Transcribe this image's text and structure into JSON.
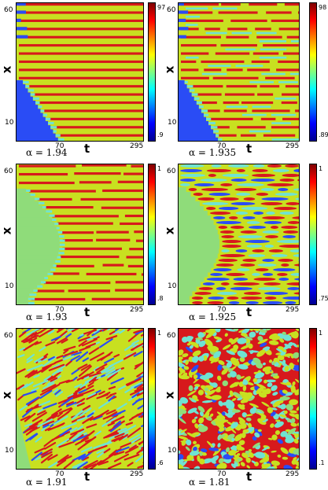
{
  "chart_data": [
    {
      "type": "heatmap",
      "xlabel": "t",
      "ylabel": "x",
      "x_ticks": [
        "70",
        "295"
      ],
      "y_ticks": [
        "60",
        "10"
      ],
      "colorbar_ticks": [
        "97",
        ".9"
      ],
      "caption": "α = 1.94",
      "pattern": "stripes"
    },
    {
      "type": "heatmap",
      "xlabel": "t",
      "ylabel": "x",
      "x_ticks": [
        "70",
        "295"
      ],
      "y_ticks": [
        "60",
        "10"
      ],
      "colorbar_ticks": [
        "98",
        ".89"
      ],
      "caption": "α = 1.935",
      "pattern": "stripes-broken"
    },
    {
      "type": "heatmap",
      "xlabel": "t",
      "ylabel": "x",
      "x_ticks": [
        "70",
        "295"
      ],
      "y_ticks": [
        "60",
        "10"
      ],
      "colorbar_ticks": [
        "1",
        ".8"
      ],
      "caption": "α = 1.93",
      "pattern": "stripes-wavy"
    },
    {
      "type": "heatmap",
      "xlabel": "t",
      "ylabel": "x",
      "x_ticks": [
        "70",
        "295"
      ],
      "y_ticks": [
        "60",
        "10"
      ],
      "colorbar_ticks": [
        "1",
        ".75"
      ],
      "caption": "α = 1.925",
      "pattern": "dashes"
    },
    {
      "type": "heatmap",
      "xlabel": "t",
      "ylabel": "x",
      "x_ticks": [
        "70",
        "295"
      ],
      "y_ticks": [
        "60",
        "10"
      ],
      "colorbar_ticks": [
        "1",
        ".6"
      ],
      "caption": "α = 1.91",
      "pattern": "chaotic-diagonal"
    },
    {
      "type": "heatmap",
      "xlabel": "t",
      "ylabel": "x",
      "x_ticks": [
        "70",
        "295"
      ],
      "y_ticks": [
        "60",
        "10"
      ],
      "colorbar_ticks": [
        "1",
        ".1"
      ],
      "caption": "α = 1.81",
      "pattern": "turbulent"
    }
  ],
  "colors": {
    "jet": [
      "#00008f",
      "#0000ff",
      "#0080ff",
      "#00ffff",
      "#80ff80",
      "#ffff00",
      "#ff8000",
      "#ff0000",
      "#800000"
    ],
    "red": "#d7191c",
    "yellow": "#c8e020",
    "cyan": "#6fe3d2",
    "blue": "#2a4cf5",
    "green": "#8fdc7a"
  }
}
